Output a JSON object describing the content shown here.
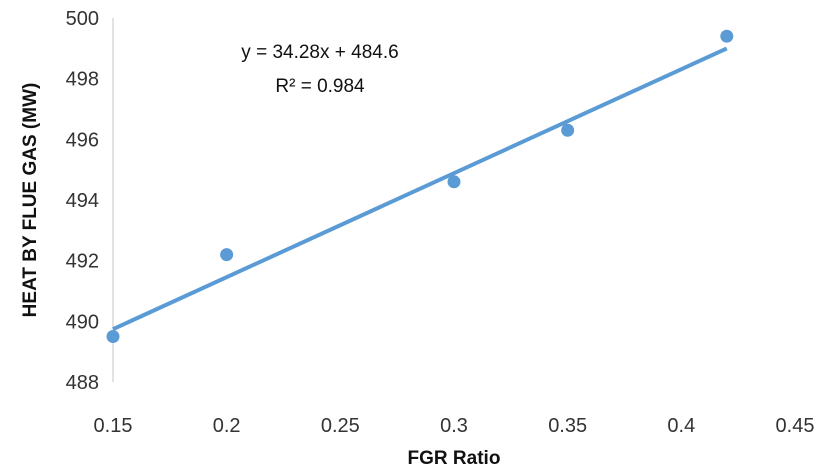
{
  "chart_data": {
    "type": "scatter",
    "title": "",
    "xlabel": "FGR Ratio",
    "ylabel": "HEAT BY FLUE GAS  (MW)",
    "xlim": [
      0.15,
      0.45
    ],
    "ylim": [
      488,
      500
    ],
    "x_ticks": [
      "0.15",
      "0.2",
      "0.25",
      "0.3",
      "0.35",
      "0.4",
      "0.45"
    ],
    "y_ticks": [
      "488",
      "490",
      "492",
      "494",
      "496",
      "498",
      "500"
    ],
    "grid": false,
    "legend": "none",
    "series": [
      {
        "points": [
          {
            "x": 0.15,
            "y": 489.5
          },
          {
            "x": 0.2,
            "y": 492.2
          },
          {
            "x": 0.3,
            "y": 494.6
          },
          {
            "x": 0.35,
            "y": 496.3
          },
          {
            "x": 0.42,
            "y": 499.4
          }
        ],
        "color": "#5b9bd5"
      }
    ],
    "trendline": {
      "type": "linear",
      "slope": 34.28,
      "intercept": 484.6,
      "x_range": [
        0.15,
        0.42
      ],
      "color": "#5b9bd5",
      "equation_text": "y = 34.28x + 484.6",
      "r2_text": "R² = 0.984"
    }
  }
}
